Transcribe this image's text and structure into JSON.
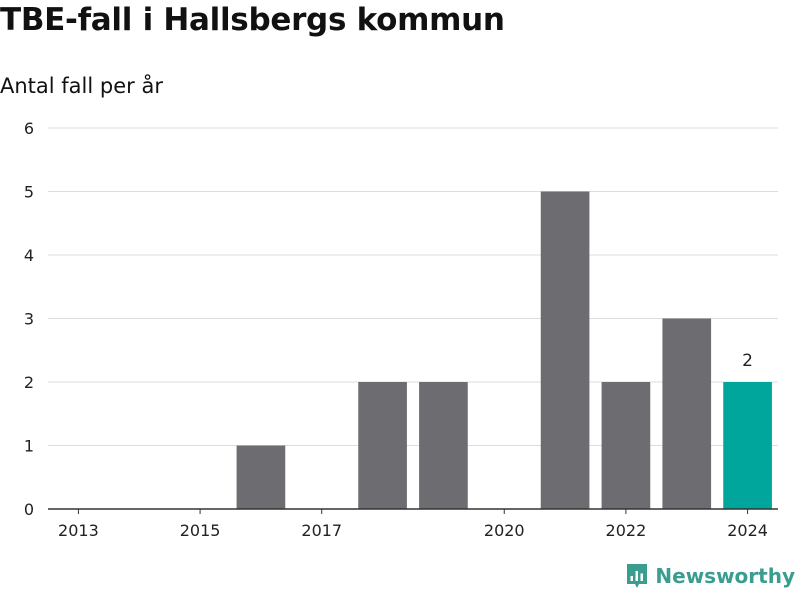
{
  "title": "TBE-fall i Hallsbergs kommun",
  "subtitle": "Antal fall per år",
  "brand": "Newsworthy",
  "colors": {
    "bar": "#6d6c71",
    "highlight": "#00a69b",
    "grid": "#dddddd",
    "axis": "#333333",
    "brand": "#3a9d8f"
  },
  "chart_data": {
    "type": "bar",
    "title": "TBE-fall i Hallsbergs kommun",
    "subtitle": "Antal fall per år",
    "categories": [
      "2013",
      "2014",
      "2015",
      "2016",
      "2017",
      "2018",
      "2019",
      "2020",
      "2021",
      "2022",
      "2023",
      "2024"
    ],
    "values": [
      0,
      0,
      0,
      1,
      0,
      2,
      2,
      0,
      5,
      2,
      3,
      2
    ],
    "highlight": "2024",
    "highlight_label": "2",
    "x_tick_labels": [
      "2013",
      "2015",
      "2017",
      "2020",
      "2022",
      "2024"
    ],
    "y_ticks": [
      0,
      1,
      2,
      3,
      4,
      5,
      6
    ],
    "ylim": [
      0,
      6
    ],
    "xlabel": "",
    "ylabel": "",
    "grid": true,
    "legend": "none"
  }
}
